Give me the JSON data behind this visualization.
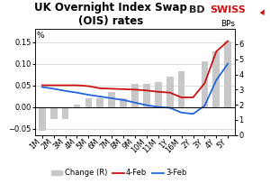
{
  "title": "UK Overnight Index Swap\n(OIS) rates",
  "categories": [
    "1M",
    "2M",
    "3M",
    "4M",
    "5M",
    "6M",
    "7M",
    "8M",
    "9M",
    "10M",
    "11M",
    "1Y",
    "16M",
    "2Y",
    "3Y",
    "4Y",
    "5Y"
  ],
  "bar_values": [
    -0.055,
    -0.028,
    -0.028,
    0.005,
    0.02,
    0.02,
    0.035,
    0.02,
    0.054,
    0.054,
    0.058,
    0.07,
    0.082,
    -0.004,
    0.105,
    0.128,
    0.152
  ],
  "line_4feb": [
    0.05,
    0.05,
    0.05,
    0.05,
    0.048,
    0.043,
    0.042,
    0.041,
    0.04,
    0.038,
    0.035,
    0.033,
    0.022,
    0.022,
    0.055,
    0.128,
    0.152
  ],
  "line_3feb": [
    0.046,
    0.042,
    0.037,
    0.033,
    0.028,
    0.024,
    0.02,
    0.016,
    0.01,
    0.004,
    0.0,
    -0.002,
    -0.013,
    -0.016,
    0.003,
    0.062,
    0.1
  ],
  "bar_color": "#c8c8c8",
  "line_4feb_color": "#cc1111",
  "line_3feb_color": "#2266dd",
  "ylabel_left": "%",
  "ylabel_right": "BPs",
  "ylim_left": [
    -0.065,
    0.18
  ],
  "ylim_right": [
    0,
    7.0
  ],
  "yticks_left": [
    -0.05,
    0.0,
    0.05,
    0.1,
    0.15
  ],
  "yticks_right": [
    0,
    1,
    2,
    3,
    4,
    5,
    6
  ],
  "background_color": "#ffffff",
  "grid_color": "#d0d0d0",
  "title_fontsize": 8.5,
  "axis_fontsize": 6.5,
  "tick_fontsize": 6,
  "logo_bd_color": "#222222",
  "logo_swiss_color": "#cc1111",
  "logo_arrow_color": "#cc1111"
}
